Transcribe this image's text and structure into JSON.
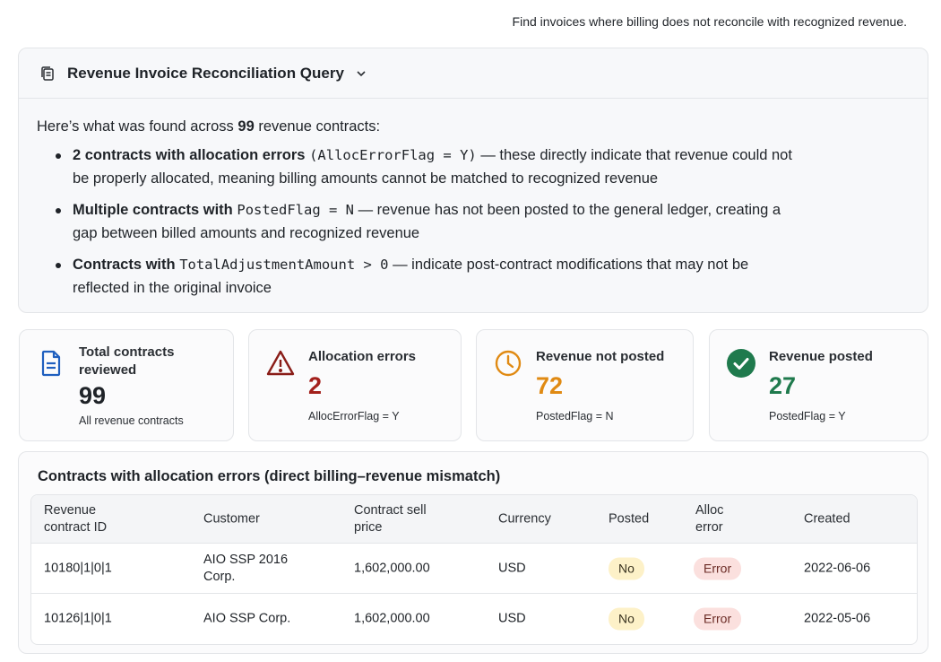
{
  "user_query": "Find invoices where billing does not reconcile with recognized revenue.",
  "query_card": {
    "title": "Revenue Invoice Reconciliation Query",
    "intro_pre": "Here’s what was found across ",
    "intro_count": "99",
    "intro_post": " revenue contracts:",
    "bullets": [
      {
        "bold": "2 contracts with allocation errors",
        "code": "(AllocErrorFlag = Y)",
        "rest": " — these directly indicate that revenue could not be properly allocated, meaning billing amounts cannot be matched to recognized revenue"
      },
      {
        "bold": "Multiple contracts with ",
        "code": "PostedFlag = N",
        "rest": " — revenue has not been posted to the general ledger, creating a gap between billed amounts and recognized revenue"
      },
      {
        "bold": "Contracts with ",
        "code": "TotalAdjustmentAmount > 0",
        "rest": " — indicate post-contract modifications that may not be reflected in the original invoice"
      }
    ]
  },
  "stats": [
    {
      "label": "Total contracts reviewed",
      "value": "99",
      "sub": "All revenue contracts",
      "icon": "document-icon",
      "color": "#1f2328"
    },
    {
      "label": "Allocation errors",
      "value": "2",
      "sub": "AllocErrorFlag = Y",
      "icon": "warning-icon",
      "color": "#a3201c"
    },
    {
      "label": "Revenue not posted",
      "value": "72",
      "sub": "PostedFlag = N",
      "icon": "clock-icon",
      "color": "#e08a13"
    },
    {
      "label": "Revenue posted",
      "value": "27",
      "sub": "PostedFlag = Y",
      "icon": "check-circle-icon",
      "color": "#1f7a4d"
    }
  ],
  "table": {
    "title": "Contracts with allocation errors (direct billing–revenue mismatch)",
    "headers": [
      "Revenue contract ID",
      "Customer",
      "Contract sell price",
      "Currency",
      "Posted",
      "Alloc error",
      "Created"
    ],
    "rows": [
      [
        "10180|1|0|1",
        "AIO SSP 2016 Corp.",
        "1,602,000.00",
        "USD",
        "No",
        "Error",
        "2022-06-06"
      ],
      [
        "10126|1|0|1",
        "AIO SSP Corp.",
        "1,602,000.00",
        "USD",
        "No",
        "Error",
        "2022-05-06"
      ]
    ]
  },
  "colors": {
    "accent_blue": "#1f5fbf",
    "error_red": "#a3201c",
    "warning_orange": "#e08a13",
    "success_green": "#1f7a4d"
  }
}
